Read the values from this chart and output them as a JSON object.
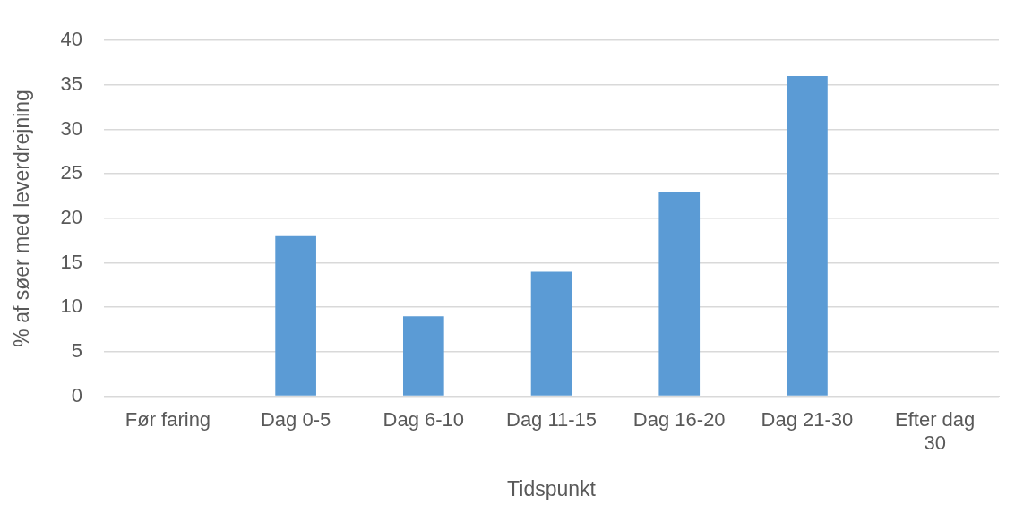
{
  "chart_data": {
    "type": "bar",
    "xlabel": "Tidspunkt",
    "ylabel": "% af søer med leverdrejning",
    "categories": [
      "Før faring",
      "Dag 0-5",
      "Dag 6-10",
      "Dag 11-15",
      "Dag 16-20",
      "Dag 21-30",
      "Efter dag 30"
    ],
    "values": [
      0,
      18,
      9,
      14,
      23,
      36,
      0
    ],
    "color": "#5b9bd5",
    "ylim": [
      0,
      40
    ],
    "yticks": [
      0,
      5,
      10,
      15,
      20,
      25,
      30,
      35,
      40
    ],
    "grid": "y",
    "legend": false
  }
}
